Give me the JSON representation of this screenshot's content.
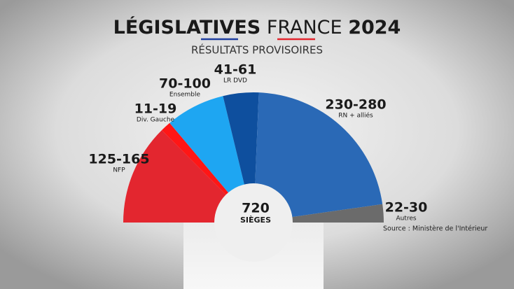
{
  "chart_data": {
    "type": "hemicycle",
    "title_words": [
      "LÉGISLATIVES",
      "FRANCE",
      "2024"
    ],
    "subtitle": "RÉSULTATS PROVISOIRES",
    "categories": [
      "NFP",
      "Div. Gauche",
      "Ensemble",
      "LR DVD",
      "RN + alliés",
      "Autres"
    ],
    "low": [
      125,
      11,
      70,
      41,
      230,
      22
    ],
    "high": [
      165,
      19,
      100,
      61,
      280,
      30
    ],
    "value_labels": [
      "125-165",
      "11-19",
      "70-100",
      "41-61",
      "230-280",
      "22-30"
    ],
    "colors": [
      "#e3262f",
      "#ff1616",
      "#1ea6f2",
      "#0e4f9e",
      "#2a69b6",
      "#6b6b6b"
    ],
    "center_value": 720,
    "center_label": "SIÈGES",
    "source": "Source : Ministère de l'Intérieur"
  }
}
